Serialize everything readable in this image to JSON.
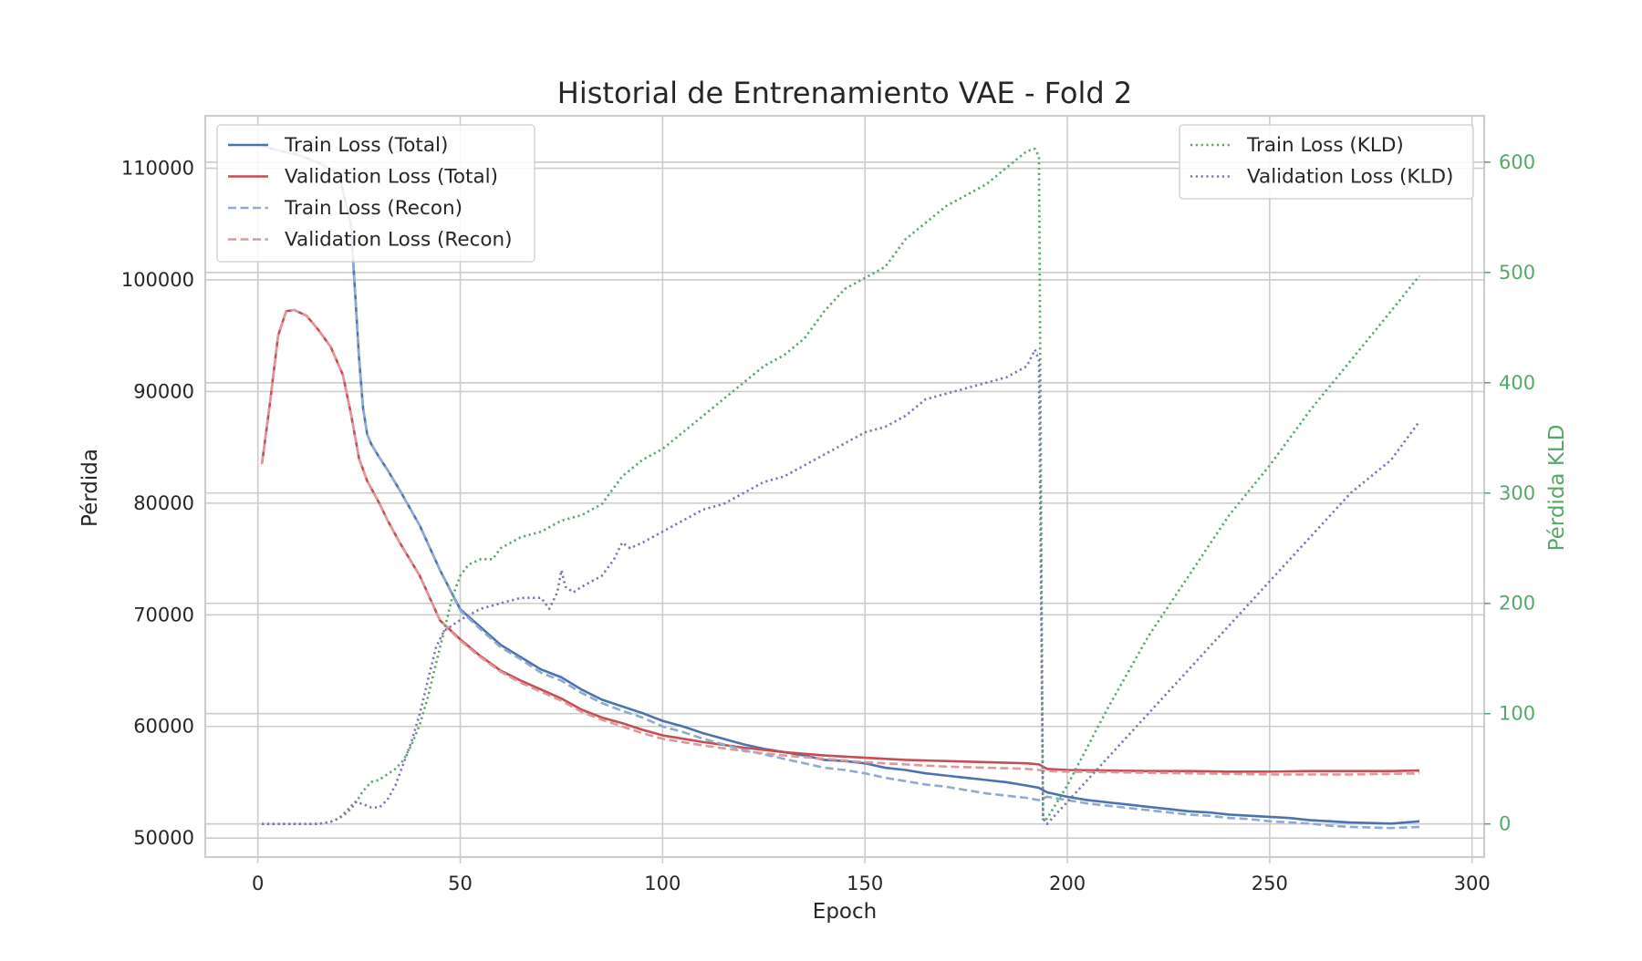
{
  "chart_data": {
    "type": "line",
    "title": "Historial de Entrenamiento VAE - Fold 2",
    "xlabel": "Epoch",
    "ylabel": "Pérdida",
    "y2label": "Pérdida KLD",
    "xlim": [
      -13,
      303
    ],
    "ylim": [
      48300,
      114700
    ],
    "y2lim": [
      -30,
      642
    ],
    "xticks": [
      0,
      50,
      100,
      150,
      200,
      250,
      300
    ],
    "yticks": [
      50000,
      60000,
      70000,
      80000,
      90000,
      100000,
      110000
    ],
    "y2ticks": [
      0,
      100,
      200,
      300,
      400,
      500,
      600
    ],
    "grid": true,
    "legend_left": "top-left",
    "legend_right": "top-right",
    "colors": {
      "train_total": "#4c72b0",
      "val_total": "#c44e52",
      "train_recon": "#8fa9d0",
      "val_recon": "#e0969a",
      "train_kld": "#55a868",
      "val_kld": "#8172b3",
      "right_axis": "#55a868",
      "grid": "#cccccc",
      "frame": "#cccccc",
      "text": "#262626"
    },
    "series": [
      {
        "name": "Train Loss (Total)",
        "axis": "left",
        "style": "solid",
        "x": [
          1,
          5,
          10,
          15,
          20,
          23,
          24,
          25,
          26,
          27,
          28,
          30,
          32,
          35,
          40,
          45,
          50,
          55,
          60,
          65,
          70,
          75,
          80,
          85,
          90,
          95,
          100,
          105,
          110,
          115,
          120,
          125,
          130,
          135,
          140,
          145,
          150,
          155,
          160,
          165,
          170,
          175,
          180,
          185,
          190,
          193,
          195,
          200,
          205,
          210,
          215,
          220,
          225,
          230,
          235,
          240,
          245,
          250,
          255,
          260,
          265,
          270,
          275,
          280,
          287
        ],
        "y": [
          112000,
          111600,
          111200,
          110500,
          109500,
          105000,
          99000,
          93000,
          88500,
          86200,
          85300,
          84100,
          83000,
          81200,
          78000,
          74000,
          70500,
          68900,
          67300,
          66200,
          65100,
          64400,
          63300,
          62400,
          61800,
          61200,
          60500,
          60000,
          59400,
          58900,
          58400,
          58000,
          57700,
          57400,
          57000,
          56900,
          56700,
          56300,
          56100,
          55800,
          55600,
          55400,
          55200,
          55000,
          54700,
          54500,
          54100,
          53700,
          53400,
          53200,
          53000,
          52800,
          52600,
          52400,
          52300,
          52100,
          52000,
          51900,
          51800,
          51600,
          51500,
          51400,
          51350,
          51300,
          51500
        ]
      },
      {
        "name": "Validation Loss (Total)",
        "axis": "left",
        "style": "solid",
        "x": [
          1,
          3,
          5,
          7,
          9,
          12,
          15,
          18,
          21,
          23,
          25,
          27,
          30,
          32,
          35,
          40,
          45,
          50,
          55,
          60,
          65,
          70,
          75,
          80,
          85,
          90,
          95,
          100,
          110,
          120,
          130,
          140,
          150,
          160,
          170,
          180,
          190,
          193,
          195,
          200,
          210,
          220,
          230,
          240,
          250,
          260,
          270,
          280,
          287
        ],
        "y": [
          83500,
          89000,
          95000,
          97200,
          97300,
          96800,
          95500,
          94000,
          91500,
          88000,
          84000,
          82000,
          80000,
          78500,
          76500,
          73500,
          69500,
          67800,
          66300,
          65000,
          64100,
          63300,
          62500,
          61500,
          60800,
          60300,
          59700,
          59200,
          58600,
          58100,
          57700,
          57400,
          57200,
          57000,
          56900,
          56800,
          56700,
          56600,
          56200,
          56100,
          56050,
          56000,
          56000,
          55950,
          55950,
          56000,
          56000,
          56000,
          56050
        ]
      },
      {
        "name": "Train Loss (Recon)",
        "axis": "left",
        "style": "dashed",
        "x": [
          1,
          5,
          10,
          15,
          20,
          23,
          24,
          25,
          26,
          27,
          28,
          30,
          32,
          35,
          40,
          45,
          50,
          55,
          60,
          65,
          70,
          75,
          80,
          85,
          90,
          95,
          100,
          105,
          110,
          115,
          120,
          125,
          130,
          135,
          140,
          145,
          150,
          155,
          160,
          165,
          170,
          175,
          180,
          185,
          190,
          193,
          195,
          200,
          205,
          210,
          215,
          220,
          225,
          230,
          235,
          240,
          245,
          250,
          255,
          260,
          265,
          270,
          275,
          280,
          287
        ],
        "y": [
          112000,
          111600,
          111200,
          110500,
          109500,
          105000,
          99000,
          93000,
          88500,
          86200,
          85300,
          84100,
          83000,
          81200,
          78000,
          74000,
          70400,
          68700,
          67100,
          66000,
          64800,
          64100,
          63000,
          62100,
          61400,
          60800,
          60000,
          59500,
          58900,
          58400,
          57900,
          57500,
          57100,
          56700,
          56300,
          56100,
          55800,
          55400,
          55100,
          54800,
          54600,
          54300,
          54000,
          53800,
          53600,
          53400,
          53700,
          53400,
          53100,
          52900,
          52700,
          52500,
          52300,
          52100,
          52000,
          51800,
          51700,
          51500,
          51400,
          51300,
          51100,
          51000,
          50950,
          50900,
          51000
        ]
      },
      {
        "name": "Validation Loss (Recon)",
        "axis": "left",
        "style": "dashed",
        "x": [
          1,
          3,
          5,
          7,
          9,
          12,
          15,
          18,
          21,
          23,
          25,
          27,
          30,
          32,
          35,
          40,
          45,
          50,
          55,
          60,
          65,
          70,
          75,
          80,
          85,
          90,
          95,
          100,
          110,
          120,
          130,
          140,
          150,
          160,
          170,
          180,
          190,
          193,
          195,
          200,
          210,
          220,
          230,
          240,
          250,
          260,
          270,
          280,
          287
        ],
        "y": [
          83500,
          89000,
          95000,
          97200,
          97300,
          96800,
          95500,
          94000,
          91500,
          88000,
          84000,
          82000,
          80000,
          78500,
          76500,
          73500,
          69500,
          67700,
          66200,
          64900,
          63900,
          63100,
          62300,
          61300,
          60600,
          60000,
          59400,
          58900,
          58300,
          57800,
          57400,
          57100,
          56800,
          56600,
          56400,
          56300,
          56200,
          56100,
          56000,
          55950,
          55900,
          55850,
          55800,
          55750,
          55700,
          55700,
          55700,
          55750,
          55800
        ]
      },
      {
        "name": "Train Loss (KLD)",
        "axis": "right",
        "style": "dotted",
        "x": [
          1,
          10,
          15,
          18,
          20,
          22,
          24,
          26,
          28,
          30,
          32,
          34,
          36,
          38,
          40,
          42,
          44,
          46,
          48,
          50,
          52,
          55,
          58,
          60,
          65,
          70,
          75,
          80,
          85,
          90,
          95,
          100,
          105,
          110,
          115,
          120,
          125,
          130,
          135,
          140,
          145,
          150,
          155,
          160,
          165,
          170,
          175,
          180,
          185,
          190,
          192,
          193,
          194,
          195,
          200,
          210,
          220,
          230,
          240,
          250,
          260,
          270,
          280,
          287
        ],
        "y": [
          0,
          0,
          0,
          2,
          5,
          10,
          18,
          30,
          38,
          40,
          45,
          50,
          58,
          72,
          90,
          115,
          145,
          175,
          205,
          225,
          235,
          240,
          240,
          250,
          260,
          265,
          275,
          280,
          290,
          315,
          330,
          340,
          355,
          370,
          385,
          400,
          415,
          425,
          440,
          465,
          485,
          495,
          505,
          530,
          545,
          560,
          570,
          580,
          595,
          610,
          612,
          605,
          3,
          5,
          35,
          105,
          170,
          225,
          280,
          325,
          375,
          420,
          465,
          497
        ]
      },
      {
        "name": "Validation Loss (KLD)",
        "axis": "right",
        "style": "dotted",
        "x": [
          1,
          10,
          15,
          18,
          20,
          22,
          24,
          26,
          28,
          30,
          32,
          34,
          36,
          38,
          40,
          42,
          44,
          46,
          48,
          50,
          55,
          60,
          65,
          70,
          72,
          74,
          75,
          76,
          78,
          80,
          85,
          88,
          90,
          92,
          95,
          100,
          105,
          110,
          115,
          120,
          125,
          130,
          135,
          140,
          145,
          150,
          155,
          160,
          165,
          170,
          175,
          180,
          185,
          190,
          192,
          193,
          194,
          195,
          200,
          210,
          220,
          230,
          240,
          250,
          260,
          270,
          280,
          287
        ],
        "y": [
          0,
          0,
          0,
          2,
          5,
          12,
          20,
          18,
          15,
          15,
          22,
          35,
          55,
          75,
          100,
          130,
          160,
          175,
          180,
          185,
          195,
          200,
          205,
          205,
          195,
          210,
          230,
          215,
          210,
          215,
          225,
          240,
          255,
          250,
          255,
          265,
          275,
          285,
          290,
          300,
          310,
          315,
          325,
          335,
          345,
          355,
          360,
          370,
          385,
          390,
          395,
          400,
          405,
          415,
          430,
          420,
          5,
          0,
          20,
          60,
          100,
          140,
          180,
          220,
          260,
          300,
          330,
          365
        ]
      }
    ]
  }
}
